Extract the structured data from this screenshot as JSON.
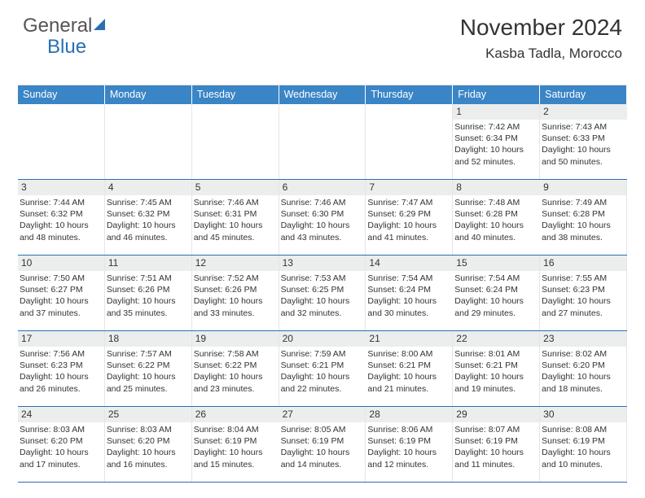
{
  "logo": {
    "part1": "General",
    "part2": "Blue"
  },
  "header": {
    "month_year": "November 2024",
    "location": "Kasba Tadla, Morocco"
  },
  "colors": {
    "accent": "#3a85c6",
    "rowline": "#2a6fb5",
    "daybg": "#eceeee",
    "text": "#333333"
  },
  "dayNames": [
    "Sunday",
    "Monday",
    "Tuesday",
    "Wednesday",
    "Thursday",
    "Friday",
    "Saturday"
  ],
  "weeks": [
    [
      {
        "empty": true
      },
      {
        "empty": true
      },
      {
        "empty": true
      },
      {
        "empty": true
      },
      {
        "empty": true
      },
      {
        "n": "1",
        "sr": "7:42 AM",
        "ss": "6:34 PM",
        "dl": "10 hours and 52 minutes."
      },
      {
        "n": "2",
        "sr": "7:43 AM",
        "ss": "6:33 PM",
        "dl": "10 hours and 50 minutes."
      }
    ],
    [
      {
        "n": "3",
        "sr": "7:44 AM",
        "ss": "6:32 PM",
        "dl": "10 hours and 48 minutes."
      },
      {
        "n": "4",
        "sr": "7:45 AM",
        "ss": "6:32 PM",
        "dl": "10 hours and 46 minutes."
      },
      {
        "n": "5",
        "sr": "7:46 AM",
        "ss": "6:31 PM",
        "dl": "10 hours and 45 minutes."
      },
      {
        "n": "6",
        "sr": "7:46 AM",
        "ss": "6:30 PM",
        "dl": "10 hours and 43 minutes."
      },
      {
        "n": "7",
        "sr": "7:47 AM",
        "ss": "6:29 PM",
        "dl": "10 hours and 41 minutes."
      },
      {
        "n": "8",
        "sr": "7:48 AM",
        "ss": "6:28 PM",
        "dl": "10 hours and 40 minutes."
      },
      {
        "n": "9",
        "sr": "7:49 AM",
        "ss": "6:28 PM",
        "dl": "10 hours and 38 minutes."
      }
    ],
    [
      {
        "n": "10",
        "sr": "7:50 AM",
        "ss": "6:27 PM",
        "dl": "10 hours and 37 minutes."
      },
      {
        "n": "11",
        "sr": "7:51 AM",
        "ss": "6:26 PM",
        "dl": "10 hours and 35 minutes."
      },
      {
        "n": "12",
        "sr": "7:52 AM",
        "ss": "6:26 PM",
        "dl": "10 hours and 33 minutes."
      },
      {
        "n": "13",
        "sr": "7:53 AM",
        "ss": "6:25 PM",
        "dl": "10 hours and 32 minutes."
      },
      {
        "n": "14",
        "sr": "7:54 AM",
        "ss": "6:24 PM",
        "dl": "10 hours and 30 minutes."
      },
      {
        "n": "15",
        "sr": "7:54 AM",
        "ss": "6:24 PM",
        "dl": "10 hours and 29 minutes."
      },
      {
        "n": "16",
        "sr": "7:55 AM",
        "ss": "6:23 PM",
        "dl": "10 hours and 27 minutes."
      }
    ],
    [
      {
        "n": "17",
        "sr": "7:56 AM",
        "ss": "6:23 PM",
        "dl": "10 hours and 26 minutes."
      },
      {
        "n": "18",
        "sr": "7:57 AM",
        "ss": "6:22 PM",
        "dl": "10 hours and 25 minutes."
      },
      {
        "n": "19",
        "sr": "7:58 AM",
        "ss": "6:22 PM",
        "dl": "10 hours and 23 minutes."
      },
      {
        "n": "20",
        "sr": "7:59 AM",
        "ss": "6:21 PM",
        "dl": "10 hours and 22 minutes."
      },
      {
        "n": "21",
        "sr": "8:00 AM",
        "ss": "6:21 PM",
        "dl": "10 hours and 21 minutes."
      },
      {
        "n": "22",
        "sr": "8:01 AM",
        "ss": "6:21 PM",
        "dl": "10 hours and 19 minutes."
      },
      {
        "n": "23",
        "sr": "8:02 AM",
        "ss": "6:20 PM",
        "dl": "10 hours and 18 minutes."
      }
    ],
    [
      {
        "n": "24",
        "sr": "8:03 AM",
        "ss": "6:20 PM",
        "dl": "10 hours and 17 minutes."
      },
      {
        "n": "25",
        "sr": "8:03 AM",
        "ss": "6:20 PM",
        "dl": "10 hours and 16 minutes."
      },
      {
        "n": "26",
        "sr": "8:04 AM",
        "ss": "6:19 PM",
        "dl": "10 hours and 15 minutes."
      },
      {
        "n": "27",
        "sr": "8:05 AM",
        "ss": "6:19 PM",
        "dl": "10 hours and 14 minutes."
      },
      {
        "n": "28",
        "sr": "8:06 AM",
        "ss": "6:19 PM",
        "dl": "10 hours and 12 minutes."
      },
      {
        "n": "29",
        "sr": "8:07 AM",
        "ss": "6:19 PM",
        "dl": "10 hours and 11 minutes."
      },
      {
        "n": "30",
        "sr": "8:08 AM",
        "ss": "6:19 PM",
        "dl": "10 hours and 10 minutes."
      }
    ]
  ],
  "labels": {
    "sunrise": "Sunrise:",
    "sunset": "Sunset:",
    "daylight": "Daylight:"
  }
}
